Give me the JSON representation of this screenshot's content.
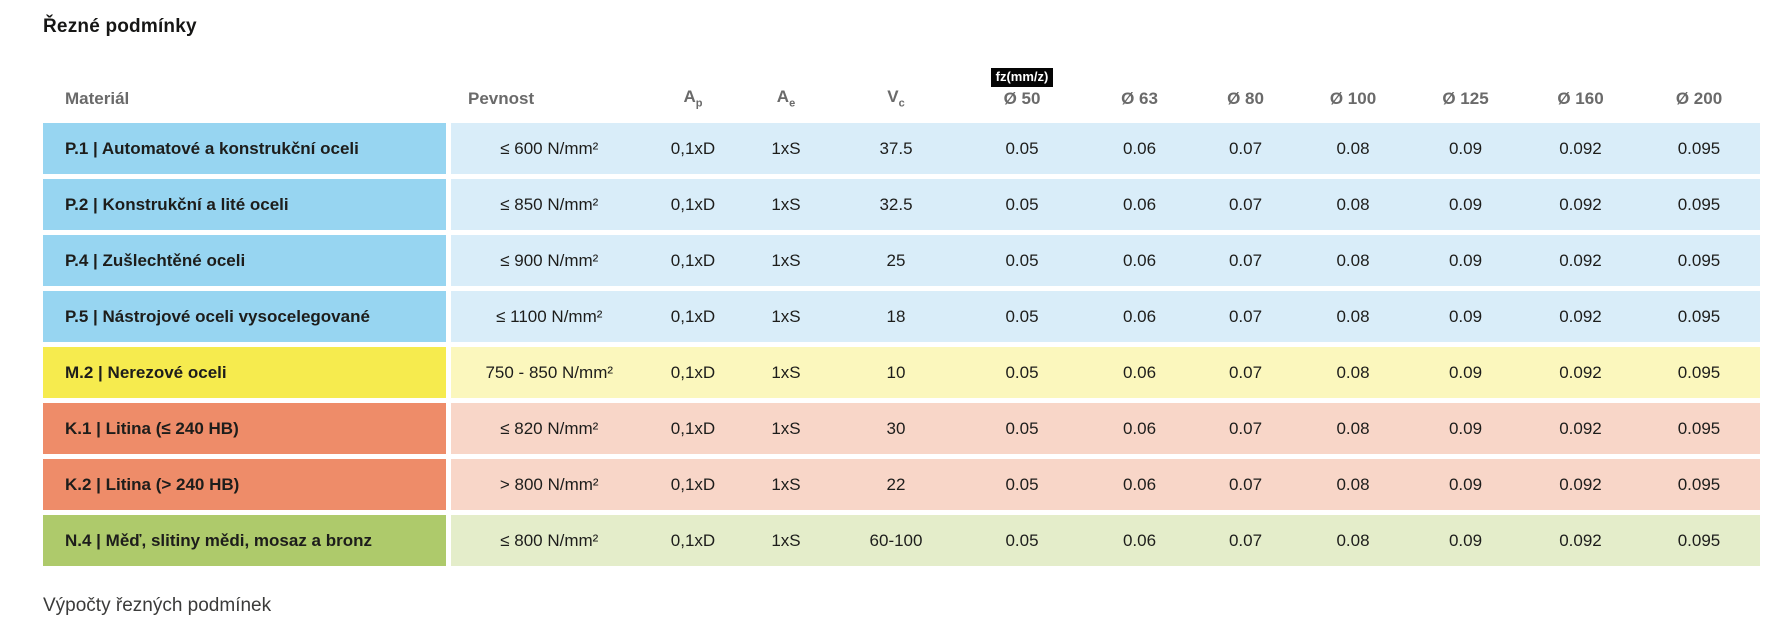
{
  "page": {
    "title": "Řezné podmínky",
    "footer": "Výpočty řezných podmínek"
  },
  "table": {
    "badge": "fz(mm/z)",
    "headers": {
      "material": "Materiál",
      "pevnost": "Pevnost",
      "ap": {
        "base": "A",
        "sub": "p"
      },
      "ae": {
        "base": "A",
        "sub": "e"
      },
      "vc": {
        "base": "V",
        "sub": "c"
      },
      "diameters": [
        "Ø 50",
        "Ø 63",
        "Ø 80",
        "Ø 100",
        "Ø 125",
        "Ø 160",
        "Ø 200"
      ]
    },
    "colors": {
      "blue": {
        "material": "#97d5f1",
        "cells": "#d9edf9"
      },
      "yellow": {
        "material": "#f6eb4e",
        "cells": "#fbf7bd"
      },
      "orange": {
        "material": "#ee8c69",
        "cells": "#f8d6c8"
      },
      "green": {
        "material": "#aeca6b",
        "cells": "#e4edca"
      },
      "text_dark": "#1d1d1b",
      "header_gray": "#6a6a6a",
      "badge_bg": "#050505",
      "badge_text": "#ffffff"
    },
    "rows": [
      {
        "material": "P.1 | Automatové a konstrukční oceli",
        "pevnost": "≤ 600 N/mm²",
        "ap": "0,1xD",
        "ae": "1xS",
        "vc": "37.5",
        "fz": [
          "0.05",
          "0.06",
          "0.07",
          "0.08",
          "0.09",
          "0.092",
          "0.095"
        ],
        "color_group": "blue"
      },
      {
        "material": "P.2 | Konstrukční a lité oceli",
        "pevnost": "≤ 850 N/mm²",
        "ap": "0,1xD",
        "ae": "1xS",
        "vc": "32.5",
        "fz": [
          "0.05",
          "0.06",
          "0.07",
          "0.08",
          "0.09",
          "0.092",
          "0.095"
        ],
        "color_group": "blue"
      },
      {
        "material": "P.4 | Zušlechtěné oceli",
        "pevnost": "≤ 900 N/mm²",
        "ap": "0,1xD",
        "ae": "1xS",
        "vc": "25",
        "fz": [
          "0.05",
          "0.06",
          "0.07",
          "0.08",
          "0.09",
          "0.092",
          "0.095"
        ],
        "color_group": "blue"
      },
      {
        "material": "P.5 | Nástrojové oceli vysocelegované",
        "pevnost": "≤ 1100 N/mm²",
        "ap": "0,1xD",
        "ae": "1xS",
        "vc": "18",
        "fz": [
          "0.05",
          "0.06",
          "0.07",
          "0.08",
          "0.09",
          "0.092",
          "0.095"
        ],
        "color_group": "blue"
      },
      {
        "material": "M.2 | Nerezové oceli",
        "pevnost": "750 - 850 N/mm²",
        "ap": "0,1xD",
        "ae": "1xS",
        "vc": "10",
        "fz": [
          "0.05",
          "0.06",
          "0.07",
          "0.08",
          "0.09",
          "0.092",
          "0.095"
        ],
        "color_group": "yellow"
      },
      {
        "material": "K.1 | Litina (≤ 240 HB)",
        "pevnost": "≤ 820 N/mm²",
        "ap": "0,1xD",
        "ae": "1xS",
        "vc": "30",
        "fz": [
          "0.05",
          "0.06",
          "0.07",
          "0.08",
          "0.09",
          "0.092",
          "0.095"
        ],
        "color_group": "orange"
      },
      {
        "material": "K.2 | Litina (> 240 HB)",
        "pevnost": "> 800 N/mm²",
        "ap": "0,1xD",
        "ae": "1xS",
        "vc": "22",
        "fz": [
          "0.05",
          "0.06",
          "0.07",
          "0.08",
          "0.09",
          "0.092",
          "0.095"
        ],
        "color_group": "orange"
      },
      {
        "material": "N.4 | Měď, slitiny mědi, mosaz a bronz",
        "pevnost": "≤ 800 N/mm²",
        "ap": "0,1xD",
        "ae": "1xS",
        "vc": "60-100",
        "fz": [
          "0.05",
          "0.06",
          "0.07",
          "0.08",
          "0.09",
          "0.092",
          "0.095"
        ],
        "color_group": "green"
      }
    ]
  }
}
